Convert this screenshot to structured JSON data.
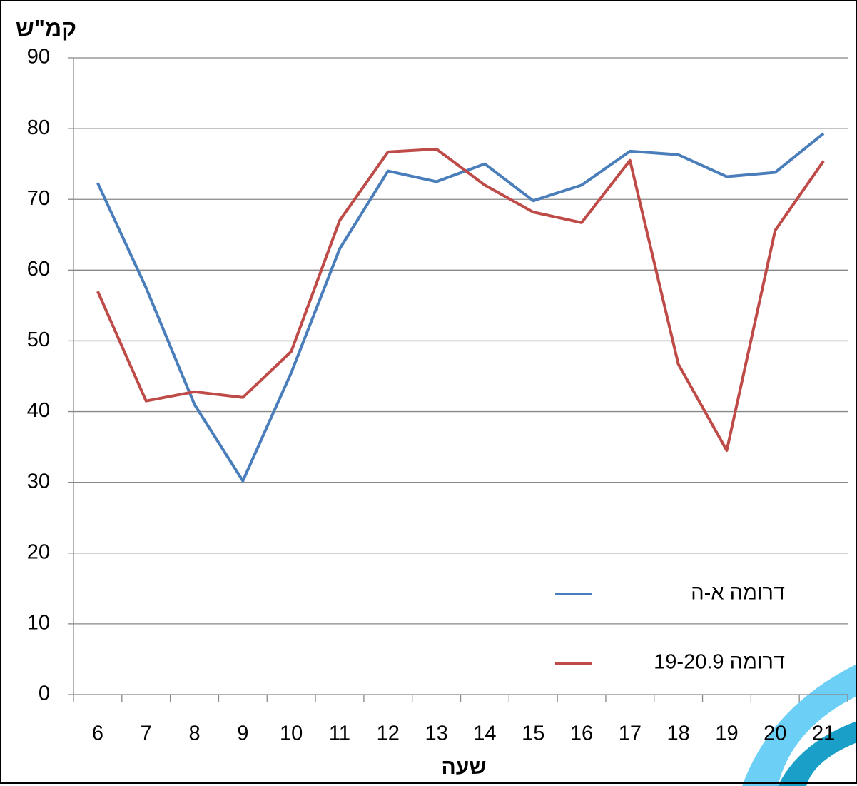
{
  "chart_data": {
    "type": "line",
    "y_label": "קמ\"ש",
    "x_label": "שעה",
    "categories": [
      "6",
      "7",
      "8",
      "9",
      "10",
      "11",
      "12",
      "13",
      "14",
      "15",
      "16",
      "17",
      "18",
      "19",
      "20",
      "21"
    ],
    "series": [
      {
        "name": "דרומה א-ה",
        "color": "#4a7ebb",
        "values": [
          72.3,
          57.5,
          41,
          30.2,
          45.5,
          63,
          74,
          72.5,
          75,
          69.8,
          72,
          76.8,
          76.3,
          73.2,
          73.8,
          79.3
        ]
      },
      {
        "name": "דרומה 19-20.9",
        "color": "#be4b48",
        "values": [
          57,
          41.5,
          42.8,
          42,
          48.5,
          67,
          76.7,
          77.1,
          72,
          68.2,
          66.7,
          75.5,
          46.7,
          34.5,
          65.6,
          75.4
        ]
      }
    ],
    "ylim": [
      0,
      90
    ],
    "yticks": [
      0,
      10,
      20,
      30,
      40,
      50,
      60,
      70,
      80,
      90
    ],
    "grid": true
  }
}
